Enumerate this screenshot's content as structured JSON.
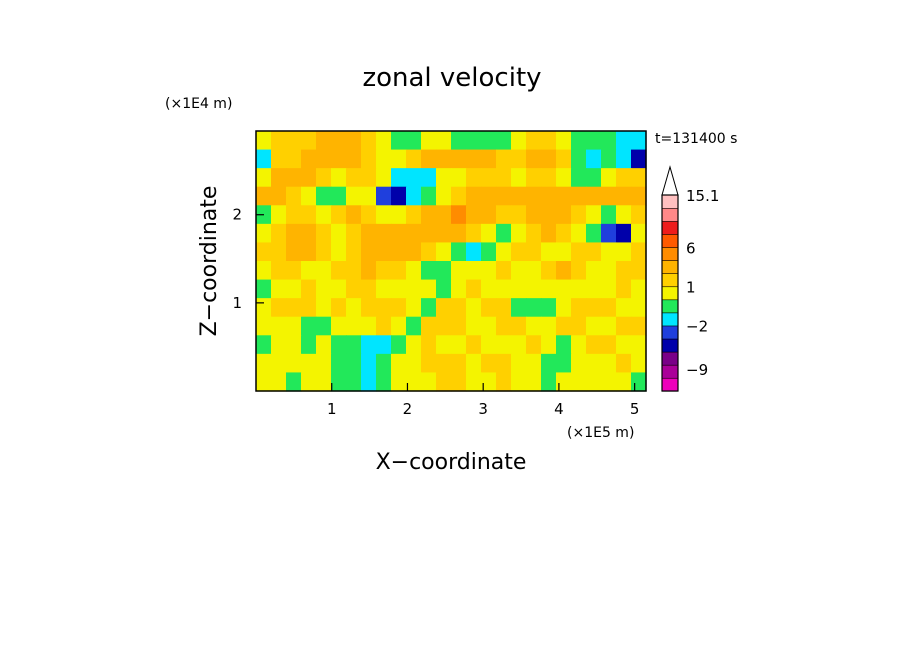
{
  "chart_data": {
    "type": "heatmap",
    "title": "zonal velocity",
    "xlabel": "X−coordinate",
    "ylabel": "Z−coordinate",
    "x_scale_label": "(×1E5 m)",
    "y_scale_label": "(×1E4 m)",
    "time_label": "t=131400 s",
    "xlim": [
      0,
      5.15
    ],
    "ylim": [
      0,
      2.95
    ],
    "x_ticks": [
      1,
      2,
      3,
      4,
      5
    ],
    "y_ticks": [
      1,
      2
    ],
    "colorbar": {
      "labels": [
        {
          "value": 15.1,
          "text": "15.1"
        },
        {
          "value": 6,
          "text": "6"
        },
        {
          "value": 1,
          "text": "1"
        },
        {
          "value": -2,
          "text": "−2"
        },
        {
          "value": -9,
          "text": "−9"
        }
      ],
      "bins": [
        {
          "low": -14,
          "high": -11,
          "color": "#ee00bb"
        },
        {
          "low": -11,
          "high": -8,
          "color": "#aa0099"
        },
        {
          "low": -8,
          "high": -5,
          "color": "#7a0088"
        },
        {
          "low": -5,
          "high": -3,
          "color": "#0000aa"
        },
        {
          "low": -3,
          "high": -2,
          "color": "#1f3fdd"
        },
        {
          "low": -2,
          "high": -1,
          "color": "#00e5ff"
        },
        {
          "low": -1,
          "high": 0,
          "color": "#22e85a"
        },
        {
          "low": 0,
          "high": 1,
          "color": "#f4f400"
        },
        {
          "low": 1,
          "high": 2,
          "color": "#ffd000"
        },
        {
          "low": 2,
          "high": 4,
          "color": "#ffb400"
        },
        {
          "low": 4,
          "high": 6,
          "color": "#ff8c00"
        },
        {
          "low": 6,
          "high": 8,
          "color": "#ff5a00"
        },
        {
          "low": 8,
          "high": 11,
          "color": "#ee1c1c"
        },
        {
          "low": 11,
          "high": 13,
          "color": "#ff8888"
        },
        {
          "low": 13,
          "high": 15.1,
          "color": "#ffc0c0"
        }
      ],
      "overflow_color": "#ffffff"
    },
    "field": {
      "x_points": 26,
      "z_points": 14,
      "rows_top_to_bottom": [
        [
          0,
          1,
          1,
          1,
          2,
          2,
          2,
          1,
          0,
          -1,
          -1,
          0,
          0,
          -1,
          -1,
          -1,
          -1,
          0,
          1,
          1,
          0,
          -1,
          -1,
          -1,
          -2,
          -2
        ],
        [
          -2,
          1,
          1,
          2,
          3,
          3,
          2,
          1,
          0,
          0,
          1,
          2,
          2,
          3,
          2,
          2,
          1,
          1,
          2,
          2,
          1,
          -1,
          -2,
          -1,
          -2,
          -4
        ],
        [
          0,
          3,
          3,
          2,
          1,
          0,
          1,
          1,
          0,
          -2,
          -2,
          -2,
          0,
          0,
          1,
          1,
          1,
          0,
          1,
          1,
          0,
          -1,
          -1,
          0,
          1,
          1
        ],
        [
          2,
          3,
          1,
          0,
          -1,
          -1,
          0,
          0,
          -3,
          -4,
          -2,
          -1,
          0,
          1,
          2,
          3,
          3,
          3,
          2,
          2,
          3,
          3,
          3,
          3,
          2,
          3
        ],
        [
          -1,
          0,
          1,
          1,
          0,
          1,
          2,
          1,
          0,
          0,
          1,
          2,
          3,
          4,
          3,
          2,
          1,
          1,
          2,
          2,
          2,
          1,
          0,
          -1,
          0,
          1
        ],
        [
          0,
          1,
          2,
          2,
          1,
          0,
          1,
          2,
          2,
          2,
          3,
          2,
          2,
          2,
          1,
          0,
          -1,
          0,
          1,
          2,
          1,
          0,
          -1,
          -3,
          -5,
          0
        ],
        [
          1,
          1,
          2,
          2,
          1,
          0,
          1,
          2,
          3,
          3,
          2,
          1,
          0,
          -1,
          -2,
          -1,
          0,
          1,
          1,
          0,
          0,
          1,
          1,
          0,
          0,
          1
        ],
        [
          0,
          1,
          1,
          0,
          0,
          1,
          1,
          2,
          1,
          1,
          0,
          -1,
          -1,
          0,
          0,
          0,
          1,
          0,
          0,
          1,
          2,
          1,
          0,
          0,
          1,
          1
        ],
        [
          -1,
          0,
          0,
          1,
          0,
          0,
          1,
          1,
          0,
          0,
          0,
          0,
          -1,
          0,
          1,
          0,
          0,
          0,
          0,
          0,
          0,
          0,
          0,
          0,
          1,
          0
        ],
        [
          0,
          1,
          1,
          1,
          0,
          1,
          0,
          1,
          1,
          1,
          0,
          -1,
          1,
          1,
          0,
          1,
          1,
          -1,
          -1,
          -1,
          0,
          1,
          1,
          1,
          0,
          0
        ],
        [
          0,
          0,
          0,
          -1,
          -1,
          0,
          0,
          0,
          1,
          0,
          -1,
          1,
          1,
          1,
          0,
          0,
          1,
          1,
          0,
          0,
          1,
          1,
          0,
          0,
          1,
          1
        ],
        [
          -1,
          0,
          0,
          -1,
          0,
          -1,
          -1,
          -2,
          -2,
          -1,
          0,
          1,
          0,
          0,
          1,
          0,
          0,
          0,
          1,
          0,
          -1,
          0,
          1,
          1,
          0,
          0
        ],
        [
          0,
          0,
          0,
          0,
          0,
          -1,
          -1,
          -2,
          -1,
          0,
          0,
          1,
          1,
          1,
          0,
          1,
          1,
          0,
          0,
          -1,
          -1,
          0,
          0,
          0,
          1,
          0
        ],
        [
          0,
          0,
          -1,
          0,
          0,
          -1,
          -1,
          -2,
          -1,
          0,
          0,
          0,
          1,
          1,
          0,
          0,
          1,
          0,
          0,
          -1,
          0,
          0,
          0,
          0,
          0,
          -1
        ]
      ]
    }
  }
}
